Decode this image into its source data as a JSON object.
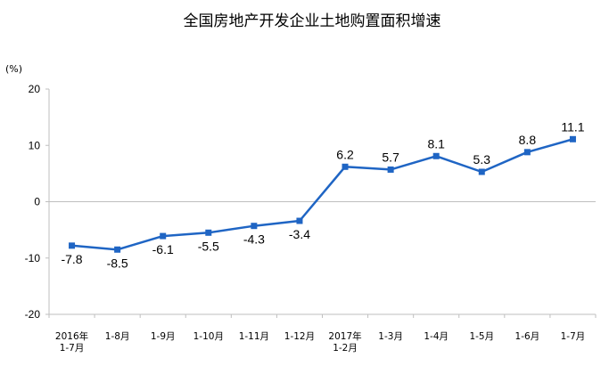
{
  "chart_data": {
    "type": "line",
    "title": "全国房地产开发企业土地购置面积增速",
    "ylabel": "(%)",
    "xlabel": "",
    "ylim": [
      -20,
      20
    ],
    "yticks": [
      20,
      10,
      0,
      -10,
      -20
    ],
    "grid": false,
    "legend": "none",
    "categories": [
      [
        "2016年",
        "1-7月"
      ],
      [
        "1-8月"
      ],
      [
        "1-9月"
      ],
      [
        "1-10月"
      ],
      [
        "1-11月"
      ],
      [
        "1-12月"
      ],
      [
        "2017年",
        "1-2月"
      ],
      [
        "1-3月"
      ],
      [
        "1-4月"
      ],
      [
        "1-5月"
      ],
      [
        "1-6月"
      ],
      [
        "1-7月"
      ]
    ],
    "series": [
      {
        "values": [
          -7.8,
          -8.5,
          -6.1,
          -5.5,
          -4.3,
          -3.4,
          6.2,
          5.7,
          8.1,
          5.3,
          8.8,
          11.1
        ],
        "labels": [
          "-7.8",
          "-8.5",
          "-6.1",
          "-5.5",
          "-4.3",
          "-3.4",
          "6.2",
          "5.7",
          "8.1",
          "5.3",
          "8.8",
          "11.1"
        ],
        "color": "#1f65c4"
      }
    ],
    "label_position": [
      "below",
      "below",
      "below",
      "below",
      "below",
      "below",
      "above",
      "above",
      "above",
      "above",
      "above",
      "above"
    ]
  }
}
